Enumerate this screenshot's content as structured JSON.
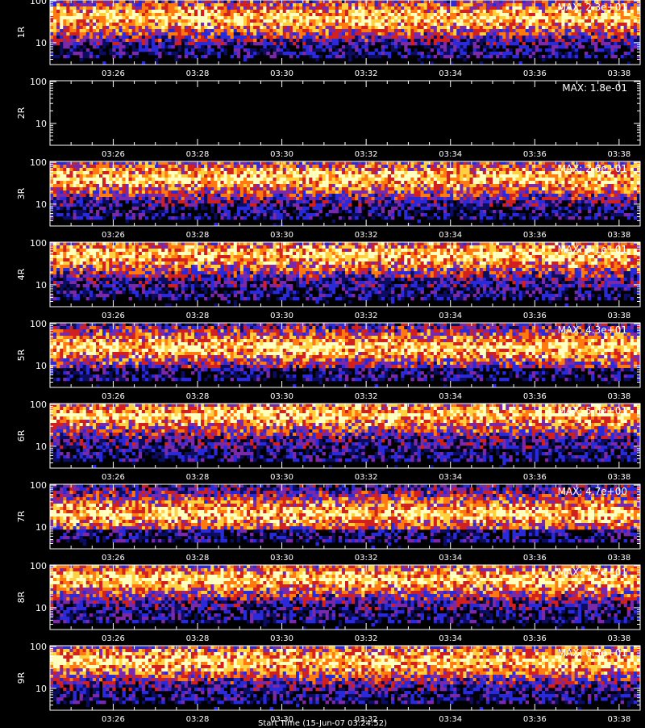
{
  "chart_data": [
    {
      "type": "heatmap",
      "ylabel": "1R",
      "max_label": "MAX: 2.3e+01",
      "seed": 11,
      "center": 0.72,
      "empty": false
    },
    {
      "type": "heatmap",
      "ylabel": "2R",
      "max_label": "MAX: 1.8e-01",
      "seed": 23,
      "center": 0.7,
      "empty": true
    },
    {
      "type": "heatmap",
      "ylabel": "3R",
      "max_label": "MAX: 2.6e+01",
      "seed": 37,
      "center": 0.74,
      "empty": false
    },
    {
      "type": "heatmap",
      "ylabel": "4R",
      "max_label": "MAX: 5.1e+01",
      "seed": 41,
      "center": 0.8,
      "empty": false
    },
    {
      "type": "heatmap",
      "ylabel": "5R",
      "max_label": "MAX: 4.3e+01",
      "seed": 53,
      "center": 0.62,
      "empty": false
    },
    {
      "type": "heatmap",
      "ylabel": "6R",
      "max_label": "MAX: 5.6e+01",
      "seed": 67,
      "center": 0.82,
      "empty": false
    },
    {
      "type": "heatmap",
      "ylabel": "7R",
      "max_label": "MAX: 4.7e+00",
      "seed": 71,
      "center": 0.55,
      "empty": false
    },
    {
      "type": "heatmap",
      "ylabel": "8R",
      "max_label": "MAX: 4.7e+01",
      "seed": 83,
      "center": 0.78,
      "empty": false
    },
    {
      "type": "heatmap",
      "ylabel": "9R",
      "max_label": "MAX: 6.5e+01",
      "seed": 97,
      "center": 0.76,
      "empty": false
    }
  ],
  "axes": {
    "x_ticks": [
      "03:26",
      "03:28",
      "03:30",
      "03:32",
      "03:34",
      "03:36",
      "03:38"
    ],
    "x_tick_minutes": [
      206,
      208,
      210,
      212,
      214,
      216,
      218
    ],
    "x_range_minutes": [
      204.5,
      218.5
    ],
    "y_scale": "log",
    "y_ticks": [
      "100",
      "10"
    ],
    "y_tick_values": [
      100,
      10
    ],
    "y_range": [
      3,
      105
    ]
  },
  "footer": {
    "xlabel": "Start Time (15-Jun-07 03:24:52)"
  },
  "colors": {
    "background": "#000000",
    "colormap": [
      "#000000",
      "#0c0c60",
      "#2a2ad8",
      "#7a2aa8",
      "#d02020",
      "#ff7a10",
      "#ffd040",
      "#ffffc0"
    ]
  }
}
